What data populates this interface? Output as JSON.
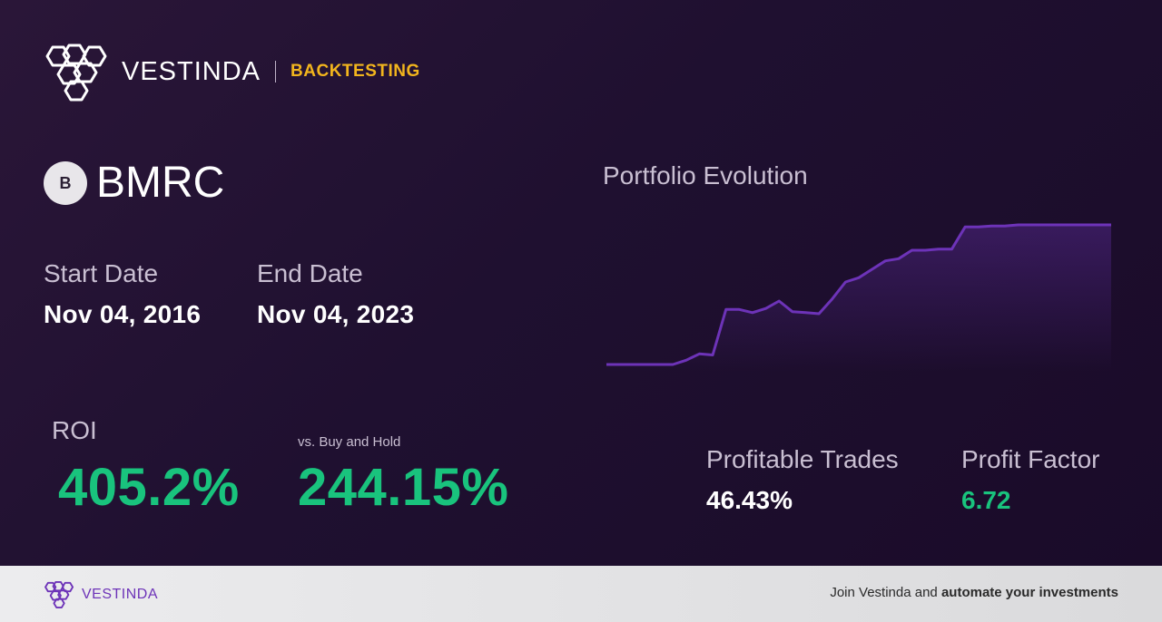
{
  "header": {
    "brand_name": "VESTINDA",
    "section": "BACKTESTING"
  },
  "ticker": {
    "badge": "B",
    "symbol": "BMRC"
  },
  "dates": {
    "start_label": "Start Date",
    "start_value": "Nov 04, 2016",
    "end_label": "End Date",
    "end_value": "Nov 04, 2023"
  },
  "returns": {
    "roi_label": "ROI",
    "roi_value": "405.2%",
    "vs_label": "vs. Buy and Hold",
    "vs_value": "244.15%"
  },
  "chart": {
    "title": "Portfolio Evolution"
  },
  "chart_data": {
    "type": "area",
    "title": "Portfolio Evolution",
    "xlabel": "",
    "ylabel": "",
    "axes_visible": false,
    "grid": false,
    "x": [
      0,
      1,
      2,
      3,
      4,
      5,
      6,
      7,
      8,
      9,
      10,
      11,
      12,
      13,
      14,
      15,
      16,
      17,
      18,
      19,
      20,
      21,
      22,
      23,
      24,
      25,
      26,
      27,
      28,
      29,
      30,
      31,
      32,
      33,
      34,
      35,
      36,
      37,
      38
    ],
    "values": [
      100,
      100,
      100,
      100,
      100,
      100,
      104,
      110,
      109,
      152,
      152,
      149,
      153,
      160,
      150,
      149,
      148,
      162,
      178,
      182,
      190,
      198,
      200,
      208,
      208,
      209,
      209,
      230,
      230,
      231,
      231,
      232,
      232,
      232,
      232,
      232,
      232,
      232,
      232
    ],
    "series_color": "#6d33b8"
  },
  "stats": {
    "profitable_label": "Profitable Trades",
    "profitable_value": "46.43%",
    "factor_label": "Profit Factor",
    "factor_value": "6.72"
  },
  "footer": {
    "brand_name": "VESTINDA",
    "cta_prefix": "Join Vestinda and",
    "cta_bold": "automate your investments"
  },
  "colors": {
    "accent_yellow": "#f2b51d",
    "positive_green": "#19c37d",
    "brand_purple": "#6d33b8"
  }
}
